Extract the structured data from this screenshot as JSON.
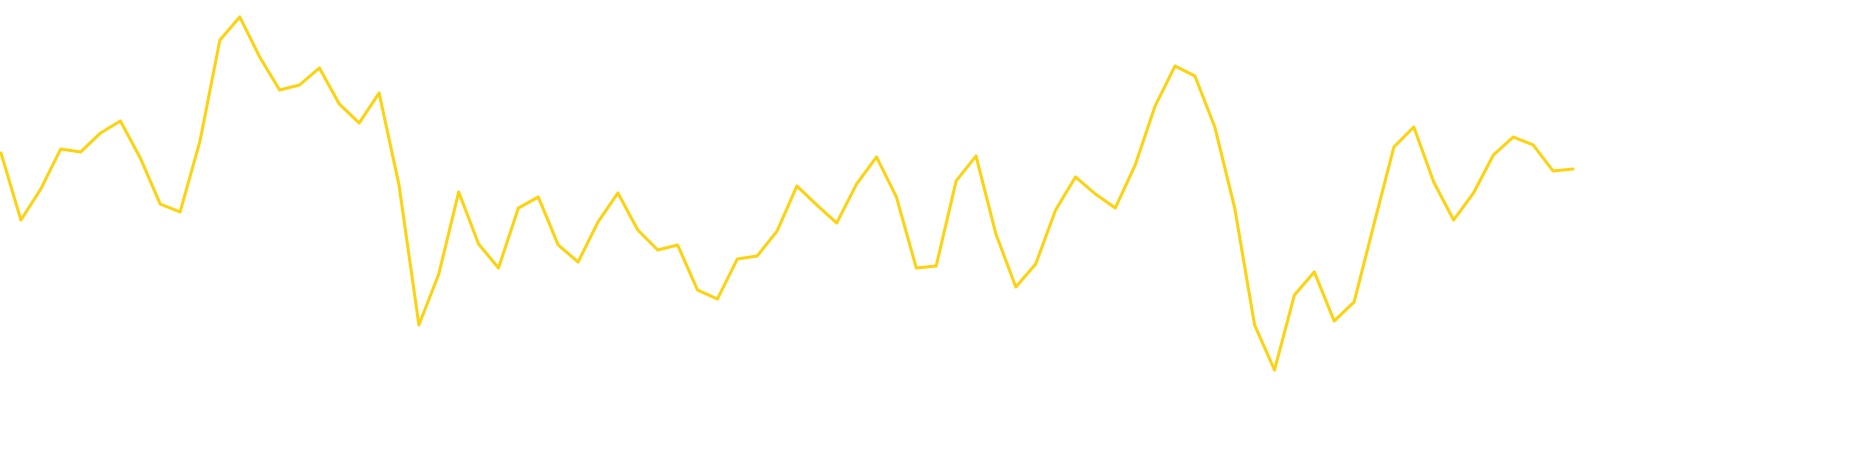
{
  "chart_data": {
    "type": "line",
    "color": "#fdd20e",
    "ylim": [
      0,
      462
    ],
    "values": [
      309,
      242,
      273,
      313,
      310,
      329,
      341,
      304,
      258,
      250,
      321,
      422,
      445,
      405,
      372,
      377,
      394,
      358,
      339,
      369,
      277,
      137,
      188,
      270,
      218,
      194,
      254,
      265,
      217,
      200,
      240,
      269,
      232,
      212,
      217,
      172,
      163,
      203,
      206,
      231,
      276,
      257,
      239,
      278,
      305,
      265,
      194,
      196,
      281,
      306,
      228,
      175,
      198,
      252,
      285,
      268,
      254,
      297,
      356,
      396,
      386,
      335,
      254,
      137,
      92,
      167,
      190,
      141,
      160,
      238,
      315,
      335,
      280,
      242,
      269,
      307,
      325,
      317,
      291,
      293
    ]
  }
}
